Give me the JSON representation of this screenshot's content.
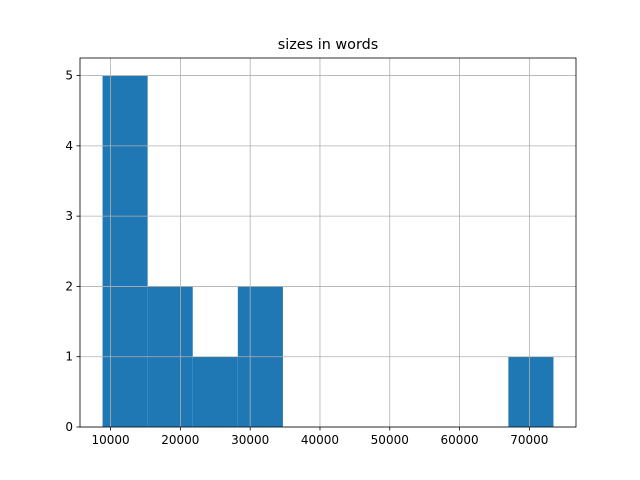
{
  "chart_data": {
    "type": "histogram",
    "title": "sizes in words",
    "bins": [
      8850,
      15310,
      21770,
      28230,
      34690,
      41150,
      47610,
      54070,
      60530,
      66990,
      73450
    ],
    "values": [
      5,
      2,
      1,
      2,
      0,
      0,
      0,
      0,
      0,
      1
    ],
    "color": "#1f77b4",
    "xlim": [
      5620,
      76680
    ],
    "xticks": [
      10000,
      20000,
      30000,
      40000,
      50000,
      60000,
      70000
    ],
    "ylim": [
      0,
      5.25
    ],
    "yticks": [
      0,
      1,
      2,
      3,
      4,
      5
    ],
    "grid": true
  }
}
